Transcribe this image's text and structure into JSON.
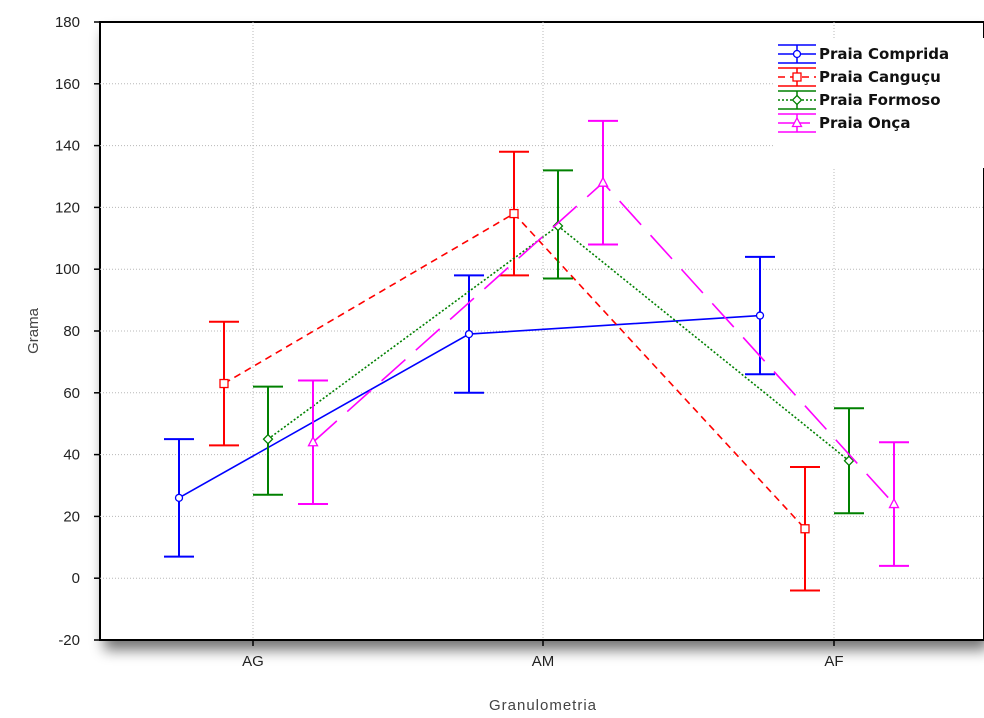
{
  "chart_data": {
    "type": "line",
    "xlabel": "Granulometria",
    "ylabel": "Grama",
    "categories": [
      "AG",
      "AM",
      "AF"
    ],
    "ylim": [
      -20,
      180
    ],
    "yticks": [
      -20,
      0,
      20,
      40,
      60,
      80,
      100,
      120,
      140,
      160,
      180
    ],
    "grid": true,
    "error_bars": true,
    "legend_position": "top-right",
    "series": [
      {
        "name": "Praia Comprida",
        "color": "#0000ff",
        "marker": "circle",
        "line_style": "solid",
        "values": [
          26,
          79,
          85
        ],
        "lower": [
          7,
          60,
          66
        ],
        "upper": [
          45,
          98,
          104
        ]
      },
      {
        "name": "Praia Canguçu",
        "color": "#ff0000",
        "marker": "square",
        "line_style": "dashed",
        "values": [
          63,
          118,
          16
        ],
        "lower": [
          43,
          98,
          -4
        ],
        "upper": [
          83,
          138,
          36
        ]
      },
      {
        "name": "Praia Formoso",
        "color": "#008000",
        "marker": "diamond",
        "line_style": "dotted",
        "values": [
          45,
          114,
          38
        ],
        "lower": [
          27,
          97,
          21
        ],
        "upper": [
          62,
          132,
          55
        ]
      },
      {
        "name": "Praia Onça",
        "color": "#ff00ff",
        "marker": "triangle",
        "line_style": "long-dash",
        "values": [
          44,
          128,
          24
        ],
        "lower": [
          24,
          108,
          4
        ],
        "upper": [
          64,
          148,
          44
        ]
      }
    ]
  }
}
